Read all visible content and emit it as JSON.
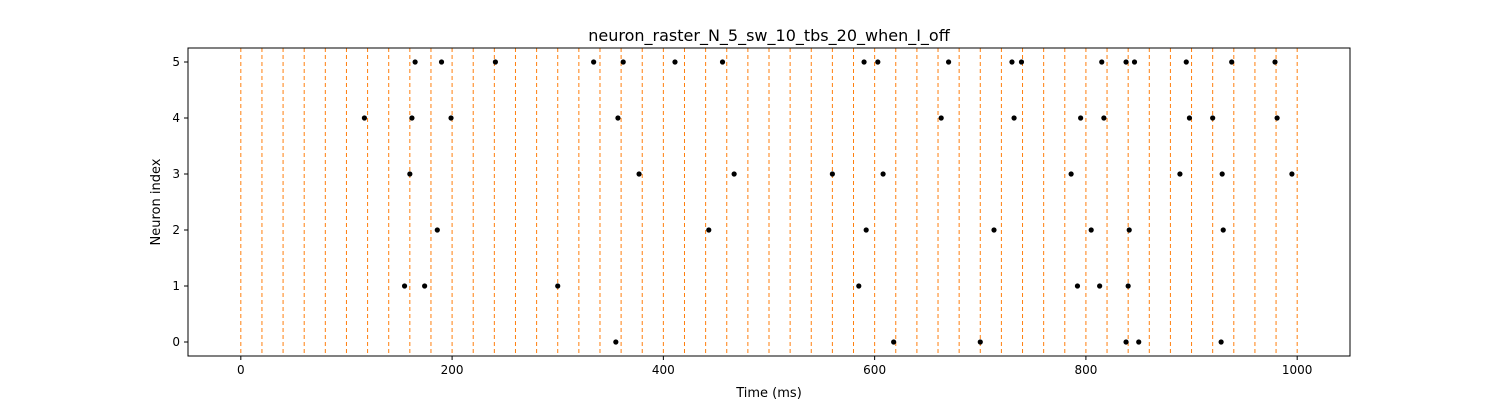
{
  "chart_data": {
    "type": "scatter",
    "title": "neuron_raster_N_5_sw_10_tbs_20_when_I_off",
    "xlabel": "Time (ms)",
    "ylabel": "Neuron index",
    "xlim": [
      -50,
      1050
    ],
    "ylim": [
      -0.25,
      5.25
    ],
    "xticks": [
      0,
      200,
      400,
      600,
      800,
      1000
    ],
    "yticks": [
      0,
      1,
      2,
      3,
      4,
      5
    ],
    "grid": false,
    "legend": "none",
    "time_bin_lines": {
      "color": "#ff7f0e",
      "style": "dashed",
      "x": [
        0,
        20,
        40,
        60,
        80,
        100,
        120,
        140,
        160,
        180,
        200,
        220,
        240,
        260,
        280,
        300,
        320,
        340,
        360,
        380,
        400,
        420,
        440,
        460,
        480,
        500,
        520,
        540,
        560,
        580,
        600,
        620,
        640,
        660,
        680,
        700,
        720,
        740,
        760,
        780,
        800,
        820,
        840,
        860,
        880,
        900,
        920,
        940,
        960,
        980,
        1000
      ]
    },
    "spike_color": "#000000",
    "series": [
      {
        "neuron": 0,
        "x": [
          355,
          618,
          700,
          838,
          850,
          928
        ]
      },
      {
        "neuron": 1,
        "x": [
          155,
          174,
          300,
          585,
          792,
          813,
          840
        ]
      },
      {
        "neuron": 2,
        "x": [
          186,
          443,
          592,
          713,
          805,
          841,
          930
        ]
      },
      {
        "neuron": 3,
        "x": [
          160,
          377,
          467,
          560,
          608,
          786,
          889,
          929,
          995
        ]
      },
      {
        "neuron": 4,
        "x": [
          117,
          162,
          199,
          357,
          663,
          732,
          795,
          817,
          898,
          920,
          981
        ]
      },
      {
        "neuron": 5,
        "x": [
          165,
          190,
          241,
          334,
          362,
          411,
          456,
          590,
          603,
          670,
          730,
          739,
          815,
          838,
          846,
          895,
          938,
          979
        ]
      }
    ]
  }
}
